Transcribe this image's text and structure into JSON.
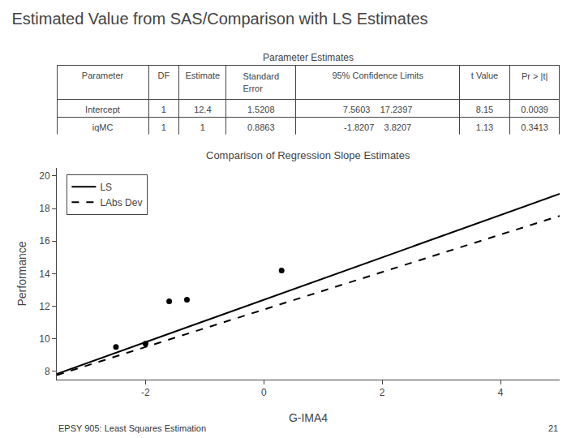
{
  "title": "Estimated Value from SAS/Comparison with LS Estimates",
  "annotations": [
    "EPSY 905: Least Squares Estimation",
    "21"
  ],
  "chart_data": [
    {
      "type": "table",
      "title": "Parameter Estimates",
      "columns": [
        "Parameter",
        "DF",
        "Estimate",
        "Standard Error",
        "95% Confidence Limits",
        "t Value",
        "Pr > |t|"
      ],
      "rows": [
        [
          "Intercept",
          "1",
          "12.4",
          "1.5208",
          "7.5603    17.2397",
          "8.15",
          "0.0039"
        ],
        [
          "iqMC",
          "1",
          "1",
          "0.8863",
          "-1.8207    3.8207",
          "1.13",
          "0.3413"
        ]
      ]
    },
    {
      "type": "scatter",
      "title": "Comparison of Regression Slope Estimates",
      "x_label": "G-IMA4",
      "y_label": "Performance",
      "xlim": [
        -3.5,
        5.0
      ],
      "ylim": [
        7.5,
        20.5
      ],
      "xticks": [
        -2,
        0,
        2,
        4
      ],
      "yticks": [
        8,
        10,
        12,
        14,
        16,
        18,
        20
      ],
      "grid": false,
      "legend": "upper left",
      "series": [
        {
          "type": "scatter",
          "color": "black",
          "marker": "circle",
          "x": [
            -2.5,
            -2.0,
            0.3,
            -1.6,
            -1.3
          ],
          "values": [
            9.5,
            9.7,
            14.2,
            12.3,
            12.4
          ]
        },
        {
          "name": "LS",
          "type": "line",
          "color": "black",
          "line_style": "solid",
          "x": [
            -3.5,
            5.0
          ],
          "values": [
            7.85,
            18.9
          ]
        },
        {
          "name": "LAbs Dev",
          "type": "line",
          "color": "black",
          "line_style": "dashed",
          "x": [
            -3.5,
            5.0
          ],
          "values": [
            7.775,
            17.55
          ]
        }
      ]
    }
  ]
}
